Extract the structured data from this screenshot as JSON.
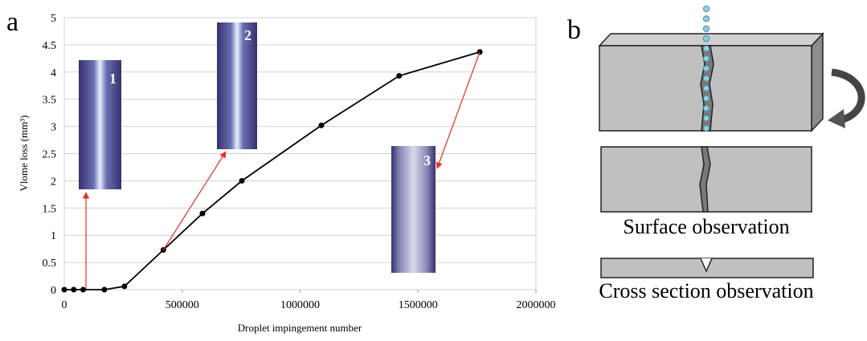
{
  "chart_data": {
    "type": "line",
    "x_label": "Droplet impingement number",
    "y_label": "Vlome loss (mm³)",
    "x": [
      0,
      40000,
      80000,
      170000,
      255000,
      420000,
      586000,
      753000,
      1090000,
      1420000,
      1762000
    ],
    "series": [
      {
        "color": "#000000",
        "values": [
          0,
          0,
          0,
          0,
          0.06,
          0.73,
          1.4,
          2.0,
          3.02,
          3.93,
          4.37
        ]
      }
    ],
    "xlim": [
      0,
      2000000
    ],
    "xticks": [
      0,
      500000,
      1000000,
      1500000,
      2000000
    ],
    "ylim": [
      0,
      5
    ],
    "yticks": [
      0,
      0.5,
      1,
      1.5,
      2,
      2.5,
      3,
      3.5,
      4,
      4.5,
      5
    ],
    "grid": true
  },
  "panel_labels": [
    "a",
    "b"
  ],
  "insets": [
    "1",
    "2",
    "3"
  ],
  "diagram": {
    "labels": [
      "Surface observation",
      "Cross section observation"
    ]
  }
}
